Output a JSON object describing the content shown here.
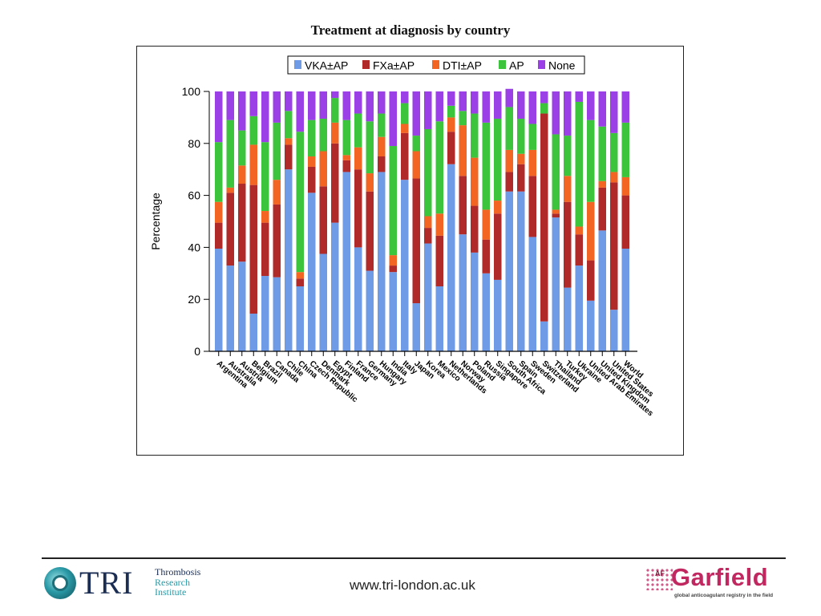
{
  "slide": {
    "title": "Treatment at diagnosis by country"
  },
  "footer": {
    "tri_letters": "TRI",
    "tri_sub": [
      "Thrombosis",
      "Research",
      "Institute"
    ],
    "url": "www.tri-london.ac.uk",
    "garfield_prefix": "AF",
    "garfield_name": "Garfield",
    "garfield_tagline": "global anticoagulant registry in the field"
  },
  "chart_data": {
    "type": "bar",
    "stacked": true,
    "title": "",
    "xlabel": "",
    "ylabel": "Percentage",
    "ylim": [
      0,
      100
    ],
    "yticks": [
      0,
      20,
      40,
      60,
      80,
      100
    ],
    "legend_position": "top",
    "categories": [
      "Argentina",
      "Australia",
      "Austria",
      "Belgium",
      "Brazil",
      "Canada",
      "Chile",
      "China",
      "Czech Republic",
      "Denmark",
      "Egypt",
      "Finland",
      "France",
      "Germany",
      "Hungary",
      "India",
      "Italy",
      "Japan",
      "Korea",
      "Mexico",
      "Netherlands",
      "Norway",
      "Poland",
      "Russia",
      "Singapore",
      "South Africa",
      "Spain",
      "Sweden",
      "Switzerland",
      "Thailand",
      "Turkey",
      "Ukraine",
      "United Arab Emirates",
      "United Kingdom",
      "United States",
      "World"
    ],
    "series": [
      {
        "name": "VKA±AP",
        "color": "#6f9be6",
        "values": [
          39.5,
          33,
          34.5,
          14.5,
          29,
          28.5,
          70,
          25,
          61,
          37.5,
          49.5,
          69,
          40,
          31,
          69,
          30.5,
          66,
          18.5,
          41.5,
          25,
          72,
          45,
          38,
          30,
          27.5,
          61.5,
          61.5,
          44,
          11.5,
          51.5,
          24.5,
          33,
          19.5,
          46.5,
          16,
          39.5
        ]
      },
      {
        "name": "FXa±AP",
        "color": "#b02a2a",
        "values": [
          10,
          28,
          30,
          49.5,
          20.5,
          28,
          9.5,
          3,
          10,
          26,
          30.5,
          4.5,
          30,
          30.5,
          6,
          2.5,
          18,
          48,
          6,
          19.5,
          12.5,
          22.5,
          18,
          13,
          25.5,
          7.5,
          10.5,
          23.5,
          80,
          1.5,
          33,
          12,
          15.5,
          16.5,
          49,
          20.5
        ]
      },
      {
        "name": "DTI±AP",
        "color": "#f26522",
        "values": [
          8,
          2,
          7,
          15.5,
          4.5,
          9.5,
          2.5,
          2.5,
          4,
          13.5,
          8,
          2,
          8.5,
          7,
          7.5,
          4,
          3.5,
          10.5,
          4.5,
          8.5,
          5.5,
          19.5,
          18.5,
          11.5,
          5,
          8.5,
          4,
          10,
          0,
          1.5,
          10,
          3,
          22.5,
          2.5,
          4,
          7
        ]
      },
      {
        "name": "AP",
        "color": "#3cc43c",
        "values": [
          23,
          26,
          13.5,
          11,
          26.5,
          22,
          10.5,
          54,
          14,
          12.5,
          9.5,
          13.5,
          13,
          20,
          9,
          42,
          8,
          6,
          33.5,
          35.5,
          4.5,
          5.5,
          17,
          33.5,
          31.5,
          16.5,
          13.5,
          10,
          4,
          29,
          15.5,
          48,
          31.5,
          21,
          15,
          21
        ]
      },
      {
        "name": "None",
        "color": "#9b3fe6",
        "values": [
          19.5,
          11,
          15,
          9.5,
          19.5,
          12,
          7.5,
          15.5,
          11,
          10.5,
          2.5,
          11,
          8.5,
          11.5,
          8.5,
          21,
          4.5,
          17,
          14.5,
          11.5,
          5.5,
          7.5,
          8.5,
          12,
          10.5,
          7,
          10.5,
          12.5,
          4.5,
          16.5,
          17,
          4,
          11,
          13.5,
          16,
          12
        ]
      }
    ]
  }
}
